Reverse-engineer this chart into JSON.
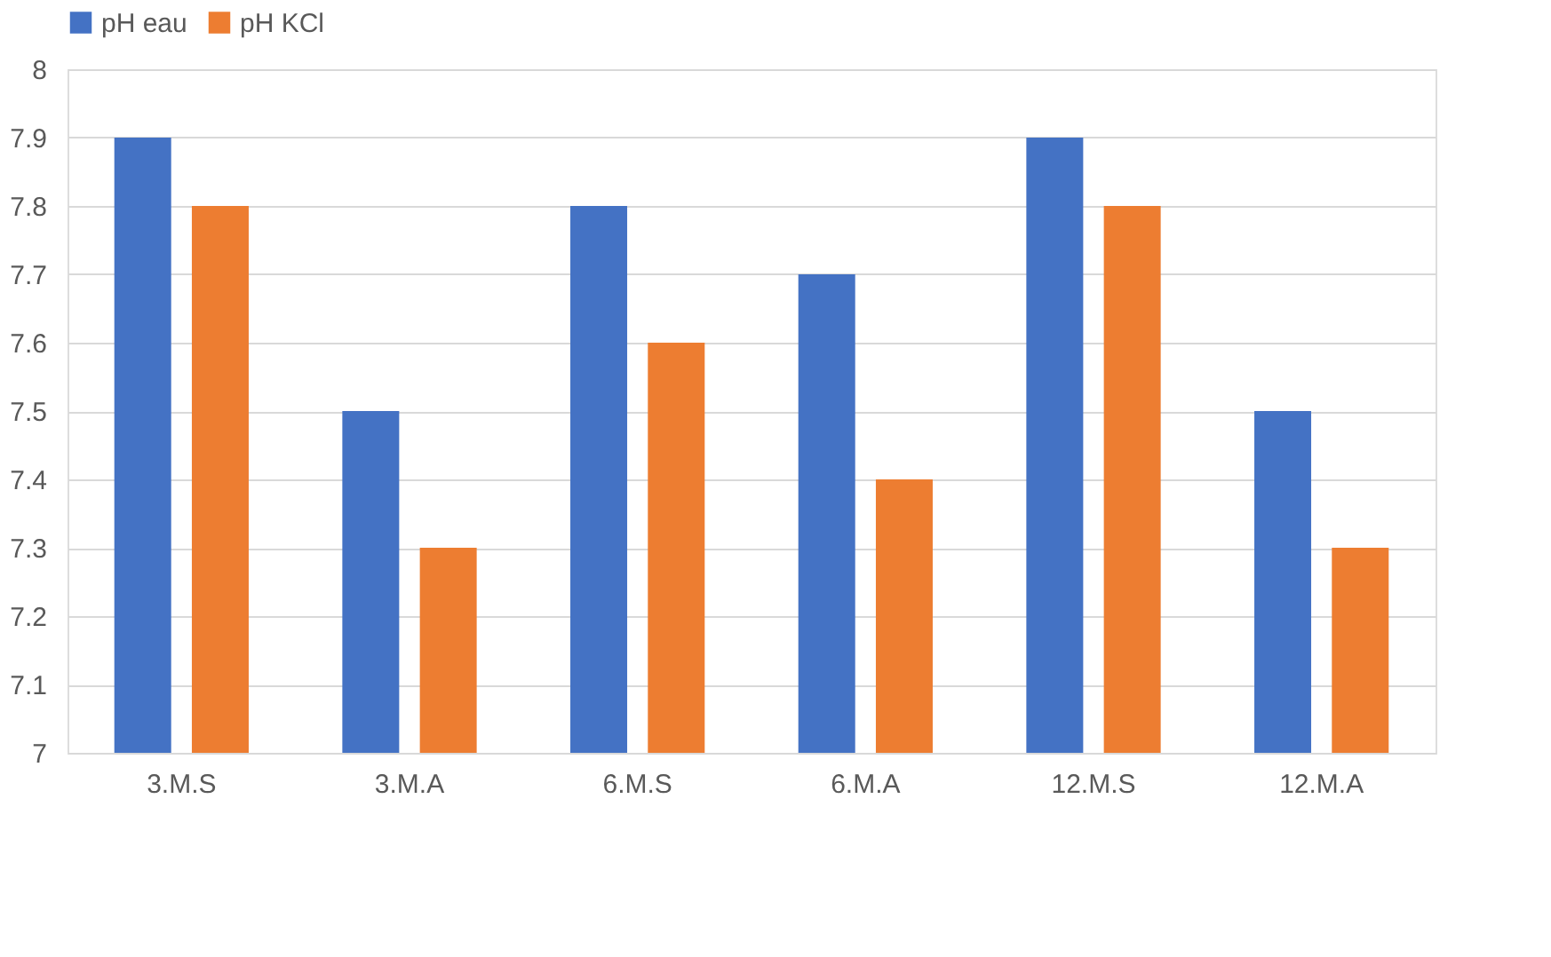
{
  "chart_data": {
    "type": "bar",
    "categories": [
      "3.M.S",
      "3.M.A",
      "6.M.S",
      "6.M.A",
      "12.M.S",
      "12.M.A"
    ],
    "series": [
      {
        "name": "pH eau",
        "color": "#4472c4",
        "values": [
          7.9,
          7.5,
          7.8,
          7.7,
          7.9,
          7.5
        ]
      },
      {
        "name": "pH KCl",
        "color": "#ed7d31",
        "values": [
          7.8,
          7.3,
          7.6,
          7.4,
          7.8,
          7.3
        ]
      }
    ],
    "ylim": [
      7,
      8
    ],
    "yticks": [
      7,
      7.1,
      7.2,
      7.3,
      7.4,
      7.5,
      7.6,
      7.7,
      7.8,
      7.9,
      8
    ],
    "grid": "y",
    "legend": "top"
  }
}
